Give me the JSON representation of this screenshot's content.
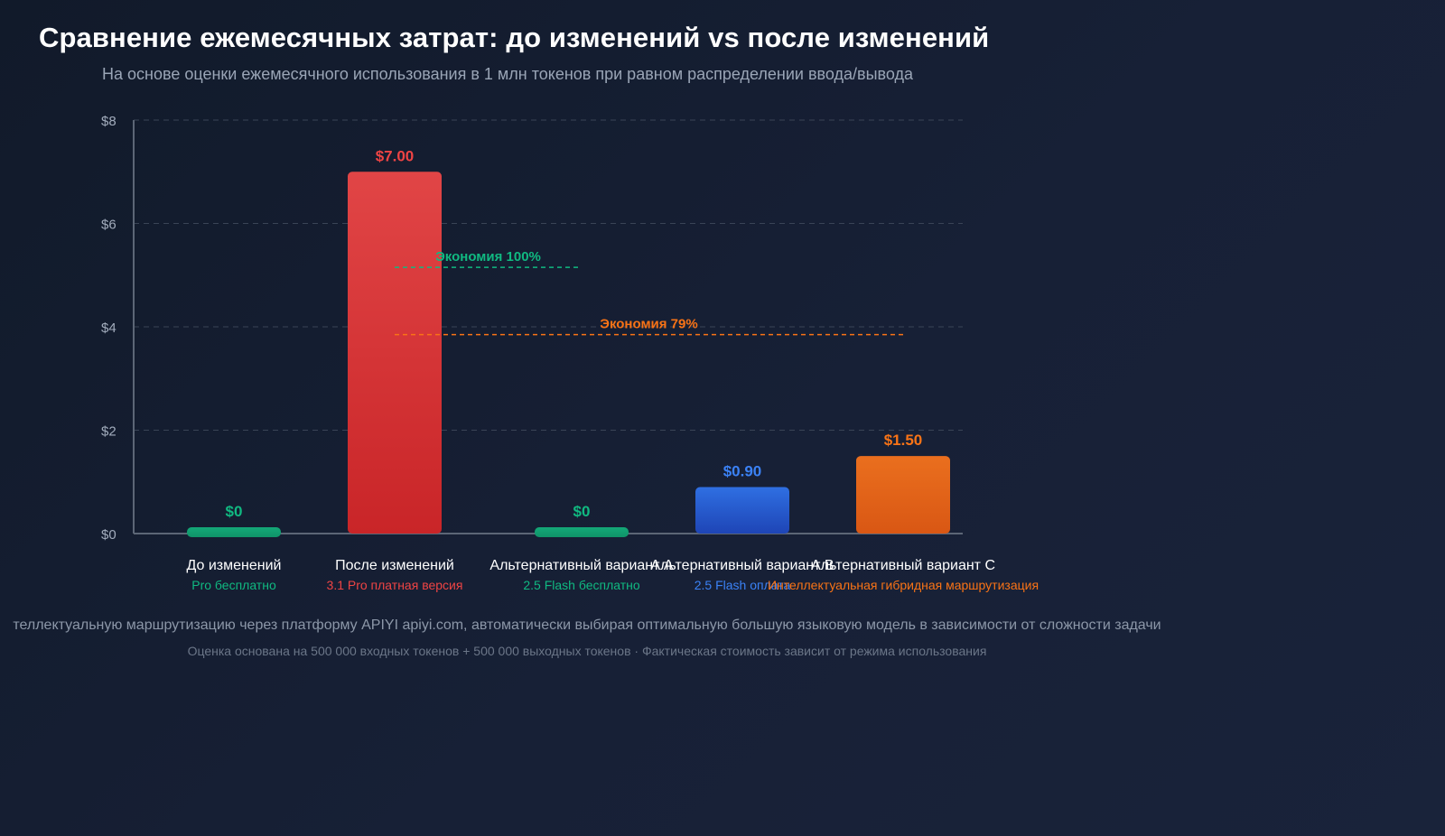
{
  "title": "Сравнение ежемесячных затрат: до изменений vs после изменений",
  "subtitle": "На основе оценки ежемесячного использования в 1 млн токенов при равном распределении ввода/вывода",
  "colors": {
    "green": "#10b981",
    "red": "#ef4444",
    "blue": "#3b82f6",
    "orange": "#f97316"
  },
  "chart_data": {
    "type": "bar",
    "title": "Сравнение ежемесячных затрат: до изменений vs после изменений",
    "categories": [
      "До изменений",
      "После изменений",
      "Альтернативный вариант A",
      "Альтернативный вариант B",
      "Альтернативный вариант C"
    ],
    "sublabels": [
      "Pro бесплатно",
      "3.1 Pro платная версия",
      "2.5 Flash бесплатно",
      "2.5 Flash оплата",
      "Интеллектуальная гибридная маршрутизация"
    ],
    "values": [
      0,
      7.0,
      0,
      0.9,
      1.5
    ],
    "value_labels": [
      "$0",
      "$7.00",
      "$0",
      "$0.90",
      "$1.50"
    ],
    "bar_colors": [
      "green",
      "red",
      "green",
      "blue",
      "orange"
    ],
    "ylim": [
      0,
      8
    ],
    "yticks": [
      0,
      2,
      4,
      6,
      8
    ],
    "ytick_labels": [
      "$0",
      "$2",
      "$4",
      "$6",
      "$8"
    ],
    "grid": true,
    "annotations": [
      {
        "text": "Экономия 100%",
        "color": "green",
        "y": 5.15,
        "from_bar": 1,
        "to_bar": 2
      },
      {
        "text": "Экономия 79%",
        "color": "orange",
        "y": 3.85,
        "from_bar": 1,
        "to_bar": 4
      }
    ]
  },
  "notes": {
    "routing": "теллектуальную маршрутизацию через платформу APIYI apiyi.com, автоматически выбирая оптимальную большую языковую модель в зависимости от сложности задачи",
    "estimate": "Оценка основана на 500 000 входных токенов + 500 000 выходных токенов · Фактическая стоимость зависит от режима использования"
  }
}
